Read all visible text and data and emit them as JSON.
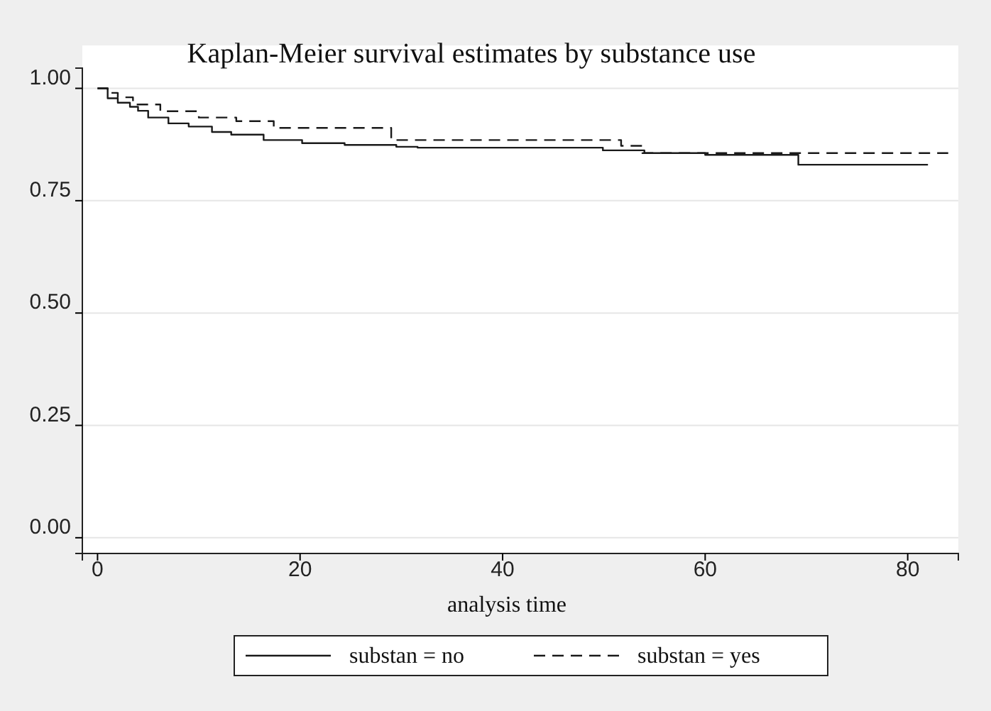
{
  "chart_data": {
    "type": "step",
    "title": "Kaplan-Meier survival estimates by substance use",
    "xlabel": "analysis time",
    "xlim": [
      -1.5,
      85
    ],
    "xticks": [
      0,
      20,
      40,
      60,
      80
    ],
    "ylim": [
      -0.035,
      1.045
    ],
    "yticks": [
      {
        "value": 0,
        "label": "0.00"
      },
      {
        "value": 0.25,
        "label": "0.25"
      },
      {
        "value": 0.5,
        "label": "0.50"
      },
      {
        "value": 0.75,
        "label": "0.75"
      },
      {
        "value": 1,
        "label": "1.00"
      }
    ],
    "grid": "y",
    "legend": "bottom",
    "series": [
      {
        "name": "substan = no",
        "color": "#1a1a1a",
        "line_style": "solid",
        "x": [
          0,
          1,
          2,
          3.2,
          4,
          5,
          7,
          9,
          11.3,
          13.2,
          16.4,
          20.2,
          24.4,
          29.5,
          31.6,
          49.9,
          54,
          60,
          69.2,
          82
        ],
        "values": [
          1,
          0.978,
          0.968,
          0.959,
          0.95,
          0.935,
          0.922,
          0.915,
          0.903,
          0.897,
          0.885,
          0.878,
          0.874,
          0.87,
          0.868,
          0.862,
          0.856,
          0.852,
          0.83,
          0.83
        ]
      },
      {
        "name": "substan = yes",
        "color": "#1a1a1a",
        "line_style": "dashed",
        "x": [
          0,
          1,
          2,
          3.5,
          6.2,
          10,
          13.7,
          17.4,
          29,
          51.7,
          53.8,
          84
        ],
        "values": [
          1,
          0.99,
          0.98,
          0.964,
          0.949,
          0.935,
          0.927,
          0.912,
          0.885,
          0.872,
          0.856,
          0.856
        ]
      }
    ]
  }
}
